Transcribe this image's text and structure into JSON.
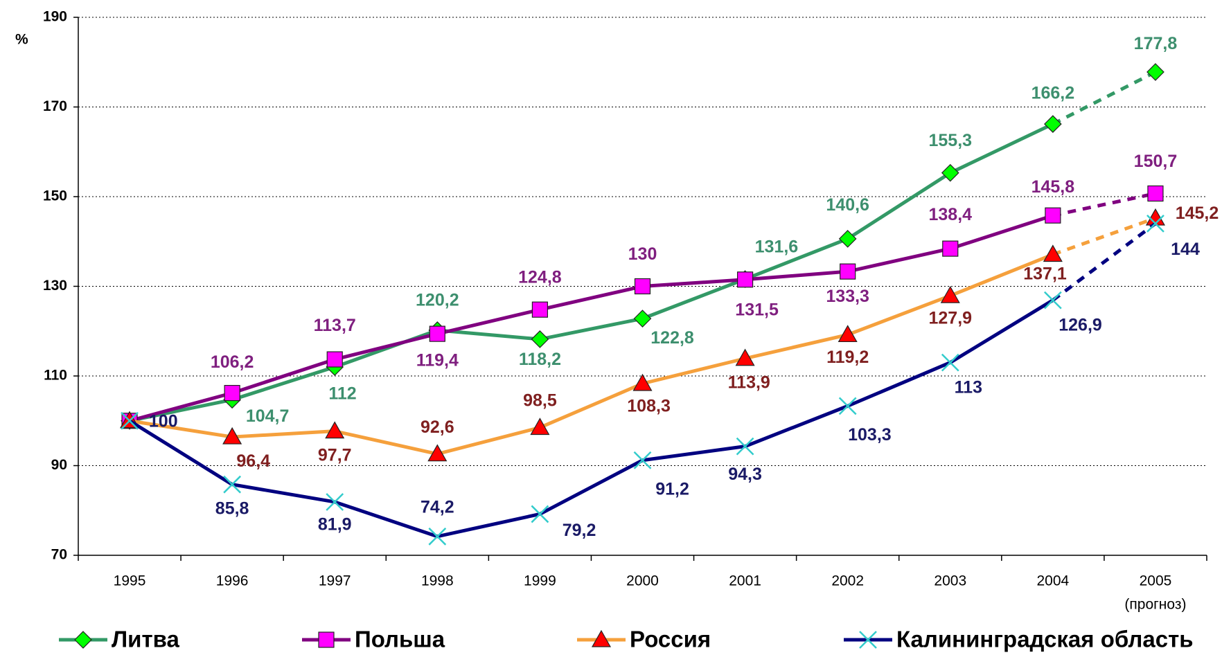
{
  "chart_data": {
    "type": "line",
    "y_label": "%",
    "categories": [
      "1995",
      "1996",
      "1997",
      "1998",
      "1999",
      "2000",
      "2001",
      "2002",
      "2003",
      "2004",
      "2005"
    ],
    "category_note": "(прогноз)",
    "ylim": [
      70,
      190
    ],
    "yticks": [
      70,
      90,
      110,
      130,
      150,
      170,
      190
    ],
    "grid": true,
    "forecast_dashed_last_segment": true,
    "legend": "bottom",
    "series": [
      {
        "name": "Литва",
        "color": "#339966",
        "marker": "diamond",
        "marker_color": "#00ff00",
        "label_color": "#3d8f6e",
        "values": [
          100,
          104.7,
          112,
          120.2,
          118.2,
          122.8,
          131.6,
          140.6,
          155.3,
          166.2,
          177.8
        ],
        "value_labels": [
          null,
          "104,7",
          "112",
          "120,2",
          "118,2",
          "122,8",
          "131,6",
          "140,6",
          "155,3",
          "166,2",
          "177,8"
        ]
      },
      {
        "name": "Польша",
        "color": "#800080",
        "marker": "square",
        "marker_color": "#ff00ff",
        "label_color": "#7f1f7f",
        "values": [
          100,
          106.2,
          113.7,
          119.4,
          124.8,
          130,
          131.5,
          133.3,
          138.4,
          145.8,
          150.7
        ],
        "value_labels": [
          null,
          "106,2",
          "113,7",
          "119,4",
          "124,8",
          "130",
          "131,5",
          "133,3",
          "138,4",
          "145,8",
          "150,7"
        ]
      },
      {
        "name": "Россия",
        "color": "#f5a03c",
        "marker": "triangle",
        "marker_color": "#ff0000",
        "label_color": "#7f1f1f",
        "values": [
          100,
          96.4,
          97.7,
          92.6,
          98.5,
          108.3,
          113.9,
          119.2,
          127.9,
          137.1,
          145.2
        ],
        "value_labels": [
          null,
          "96,4",
          "97,7",
          "92,6",
          "98,5",
          "108,3",
          "113,9",
          "119,2",
          "127,9",
          "137,1",
          "145,2"
        ]
      },
      {
        "name": "Калининградская область",
        "color": "#000080",
        "marker": "cross",
        "marker_color": "#33cccc",
        "label_color": "#1a1a66",
        "values": [
          100,
          85.8,
          81.9,
          74.2,
          79.2,
          91.2,
          94.3,
          103.3,
          113,
          126.9,
          144
        ],
        "value_labels": [
          "100",
          "85,8",
          "81,9",
          "74,2",
          "79,2",
          "91,2",
          "94,3",
          "103,3",
          "113",
          "126,9",
          "144"
        ]
      }
    ]
  }
}
